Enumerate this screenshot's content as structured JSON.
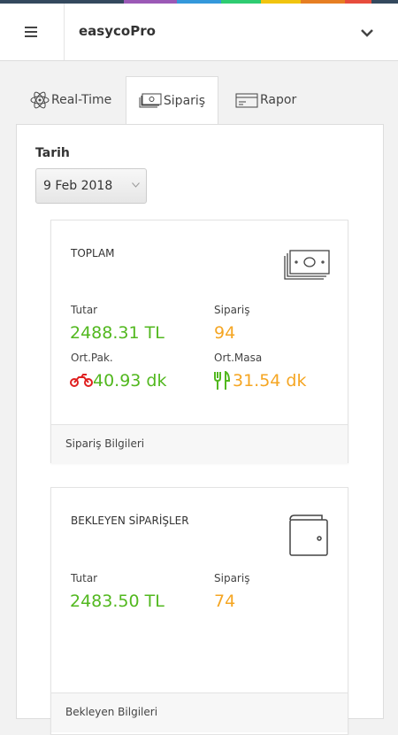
{
  "header": {
    "title": "easycoPro"
  },
  "tabs": [
    "Real-Time",
    "Sipariş",
    "Rapor"
  ],
  "date": {
    "label": "Tarih",
    "value": "9 Feb 2018"
  },
  "cards": [
    {
      "title": "TOPLAM",
      "stats": [
        {
          "label": "Tutar",
          "value": "2488.31 TL"
        },
        {
          "label": "Sipariş",
          "value": "94"
        },
        {
          "label": "Ort.Pak.",
          "value": "40.93 dk"
        },
        {
          "label": "Ort.Masa",
          "value": "31.54 dk"
        }
      ],
      "footer": "Sipariş Bilgileri"
    },
    {
      "title": "BEKLEYEN SİPARİŞLER",
      "stats": [
        {
          "label": "Tutar",
          "value": "2483.50 TL"
        },
        {
          "label": "Sipariş",
          "value": "74"
        }
      ],
      "footer": "Bekleyen Bilgileri"
    }
  ]
}
